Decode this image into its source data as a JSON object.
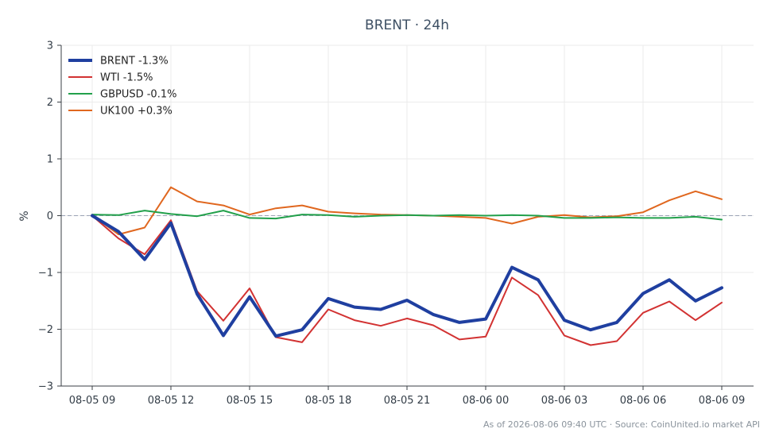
{
  "chart_data": {
    "type": "line",
    "title": "BRENT · 24h",
    "ylabel": "%",
    "xlabel": "",
    "ylim": [
      -3,
      3
    ],
    "yticks": [
      "−3",
      "−2",
      "−1",
      "0",
      "1",
      "2",
      "3"
    ],
    "ytick_values": [
      -3,
      -2,
      -1,
      0,
      1,
      2,
      3
    ],
    "xticks": [
      "08-05 09",
      "08-05 12",
      "08-05 15",
      "08-05 18",
      "08-05 21",
      "08-06 00",
      "08-06 03",
      "08-06 06",
      "08-06 09"
    ],
    "xtick_indices": [
      0,
      3,
      6,
      9,
      12,
      15,
      18,
      21,
      24
    ],
    "x": [
      "08-05 09",
      "08-05 10",
      "08-05 11",
      "08-05 12",
      "08-05 13",
      "08-05 14",
      "08-05 15",
      "08-05 16",
      "08-05 17",
      "08-05 18",
      "08-05 19",
      "08-05 20",
      "08-05 21",
      "08-05 22",
      "08-05 23",
      "08-06 00",
      "08-06 01",
      "08-06 02",
      "08-06 03",
      "08-06 04",
      "08-06 05",
      "08-06 06",
      "08-06 07",
      "08-06 08",
      "08-06 09"
    ],
    "series": [
      {
        "name": "BRENT -1.3%",
        "color": "#1f3fa0",
        "width": 4,
        "values": [
          0,
          -0.28,
          -0.77,
          -0.13,
          -1.38,
          -2.11,
          -1.43,
          -2.12,
          -2.01,
          -1.46,
          -1.61,
          -1.65,
          -1.49,
          -1.74,
          -1.88,
          -1.82,
          -0.91,
          -1.13,
          -1.84,
          -2.01,
          -1.88,
          -1.37,
          -1.13,
          -1.5,
          -1.27
        ]
      },
      {
        "name": "WTI -1.5%",
        "color": "#d23232",
        "width": 2,
        "values": [
          0,
          -0.4,
          -0.68,
          -0.08,
          -1.33,
          -1.85,
          -1.28,
          -2.14,
          -2.23,
          -1.65,
          -1.84,
          -1.94,
          -1.81,
          -1.93,
          -2.18,
          -2.13,
          -1.09,
          -1.4,
          -2.11,
          -2.28,
          -2.21,
          -1.71,
          -1.51,
          -1.84,
          -1.53
        ]
      },
      {
        "name": "GBPUSD -0.1%",
        "color": "#22a04b",
        "width": 2,
        "values": [
          0.02,
          0.01,
          0.09,
          0.03,
          -0.01,
          0.09,
          -0.04,
          -0.05,
          0.02,
          0.01,
          -0.02,
          0.0,
          0.01,
          0.0,
          0.01,
          0.0,
          0.01,
          0.0,
          -0.04,
          -0.04,
          -0.03,
          -0.04,
          -0.04,
          -0.02,
          -0.07
        ]
      },
      {
        "name": "UK100 +0.3%",
        "color": "#e0671f",
        "width": 2,
        "values": [
          0.01,
          -0.33,
          -0.21,
          0.5,
          0.25,
          0.18,
          0.02,
          0.13,
          0.18,
          0.07,
          0.04,
          0.02,
          0.01,
          0.0,
          -0.02,
          -0.04,
          -0.14,
          -0.02,
          0.01,
          -0.03,
          -0.01,
          0.06,
          0.27,
          0.43,
          0.29
        ]
      }
    ],
    "zero_line": true,
    "grid": true,
    "legend": "top-left"
  },
  "footer": "As of 2026-08-06 09:40 UTC · Source: CoinUnited.io market API"
}
